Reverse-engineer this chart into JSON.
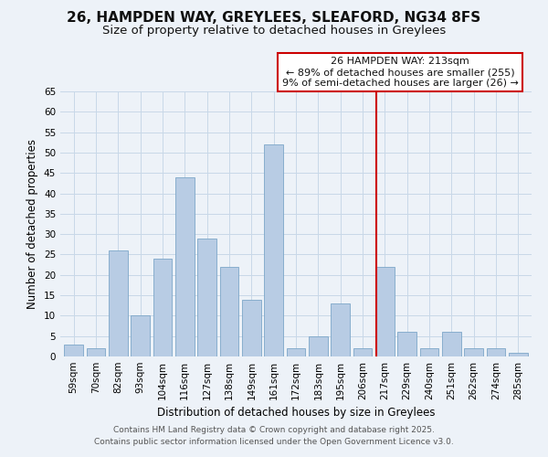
{
  "title": "26, HAMPDEN WAY, GREYLEES, SLEAFORD, NG34 8FS",
  "subtitle": "Size of property relative to detached houses in Greylees",
  "xlabel": "Distribution of detached houses by size in Greylees",
  "ylabel": "Number of detached properties",
  "bar_labels": [
    "59sqm",
    "70sqm",
    "82sqm",
    "93sqm",
    "104sqm",
    "116sqm",
    "127sqm",
    "138sqm",
    "149sqm",
    "161sqm",
    "172sqm",
    "183sqm",
    "195sqm",
    "206sqm",
    "217sqm",
    "229sqm",
    "240sqm",
    "251sqm",
    "262sqm",
    "274sqm",
    "285sqm"
  ],
  "bar_values": [
    3,
    2,
    26,
    10,
    24,
    44,
    29,
    22,
    14,
    52,
    2,
    5,
    13,
    2,
    22,
    6,
    2,
    6,
    2,
    2,
    1
  ],
  "bar_color": "#b8cce4",
  "bar_edge_color": "#7da6c8",
  "vline_x": 13.636,
  "vline_color": "#cc0000",
  "annotation_text": "26 HAMPDEN WAY: 213sqm\n← 89% of detached houses are smaller (255)\n9% of semi-detached houses are larger (26) →",
  "annotation_box_color": "#ffffff",
  "annotation_box_edge": "#cc0000",
  "ylim": [
    0,
    65
  ],
  "yticks": [
    0,
    5,
    10,
    15,
    20,
    25,
    30,
    35,
    40,
    45,
    50,
    55,
    60,
    65
  ],
  "grid_color": "#c8d8e8",
  "bg_color": "#edf2f8",
  "footer_line1": "Contains HM Land Registry data © Crown copyright and database right 2025.",
  "footer_line2": "Contains public sector information licensed under the Open Government Licence v3.0.",
  "title_fontsize": 11,
  "subtitle_fontsize": 9.5,
  "axis_label_fontsize": 8.5,
  "tick_fontsize": 7.5,
  "annotation_fontsize": 8,
  "footer_fontsize": 6.5
}
